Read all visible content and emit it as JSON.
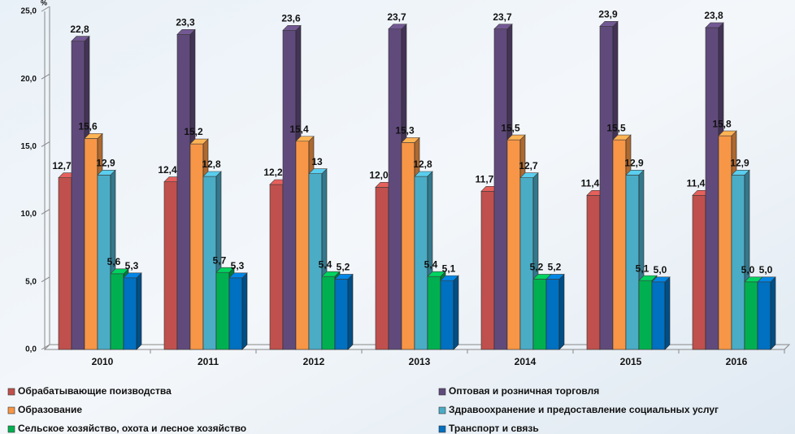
{
  "chart_data": {
    "type": "bar3d",
    "unit": "%",
    "categories": [
      "2010",
      "2011",
      "2012",
      "2013",
      "2014",
      "2015",
      "2016"
    ],
    "ylim": [
      0,
      25
    ],
    "yticks": [
      {
        "value": 0,
        "label": "0,0"
      },
      {
        "value": 5,
        "label": "5,0"
      },
      {
        "value": 10,
        "label": "10,0"
      },
      {
        "value": 15,
        "label": "15,0"
      },
      {
        "value": 20,
        "label": "20,0"
      },
      {
        "value": 25,
        "label": "25,0"
      }
    ],
    "series": [
      {
        "name": "Обрабатывающие поизводства",
        "color": "#c0504d",
        "values": [
          12.7,
          12.4,
          12.2,
          12.0,
          11.7,
          11.4,
          11.4
        ],
        "value_labels": [
          "12,7",
          "12,4",
          "12,2",
          "12,0",
          "11,7",
          "11,4",
          "11,4"
        ]
      },
      {
        "name": "Оптовая и розничная торговля",
        "color": "#604a7b",
        "values": [
          22.8,
          23.3,
          23.6,
          23.7,
          23.7,
          23.9,
          23.8
        ],
        "value_labels": [
          "22,8",
          "23,3",
          "23,6",
          "23,7",
          "23,7",
          "23,9",
          "23,8"
        ]
      },
      {
        "name": "Образование",
        "color": "#f79646",
        "values": [
          15.6,
          15.2,
          15.4,
          15.3,
          15.5,
          15.5,
          15.8
        ],
        "value_labels": [
          "15,6",
          "15,2",
          "15,4",
          "15,3",
          "15,5",
          "15,5",
          "15,8"
        ]
      },
      {
        "name": "Здравоохранение и предоставление социальных  услуг",
        "color": "#4bacc6",
        "values": [
          12.9,
          12.8,
          13,
          12.8,
          12.7,
          12.9,
          12.9
        ],
        "value_labels": [
          "12,9",
          "12,8",
          "13",
          "12,8",
          "12,7",
          "12,9",
          "12,9"
        ]
      },
      {
        "name": "Сельское хозяйство, охота и лесное хозяйство",
        "color": "#00b050",
        "values": [
          5.6,
          5.7,
          5.4,
          5.4,
          5.2,
          5.1,
          5.0
        ],
        "value_labels": [
          "5,6",
          "5,7",
          "5,4",
          "5,4",
          "5,2",
          "5,1",
          "5,0"
        ]
      },
      {
        "name": "Транспорт и связь",
        "color": "#0070c0",
        "values": [
          5.3,
          5.3,
          5.2,
          5.1,
          5.2,
          5.0,
          5.0
        ],
        "value_labels": [
          "5,3",
          "5,3",
          "5,2",
          "5,1",
          "5,2",
          "5,0",
          "5,0"
        ]
      }
    ]
  }
}
